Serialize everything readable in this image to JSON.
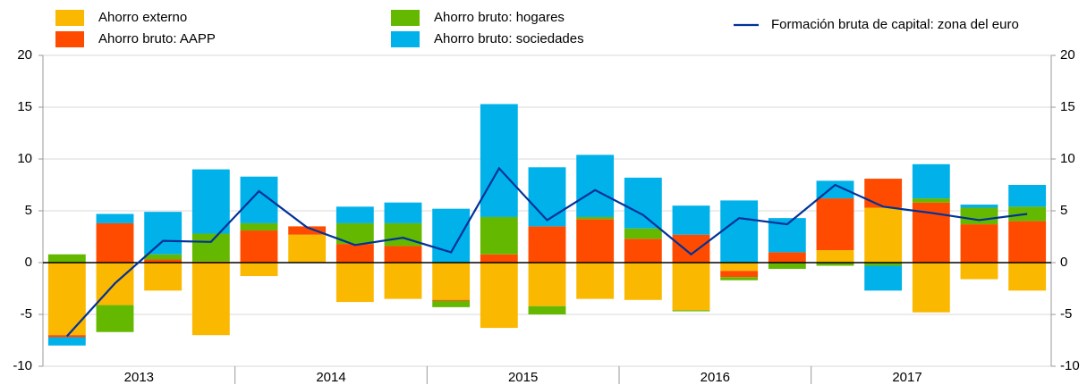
{
  "chart_data": {
    "type": "bar",
    "stacked": true,
    "categories": [
      "2013",
      null,
      null,
      null,
      "2014",
      null,
      null,
      null,
      "2015",
      null,
      null,
      null,
      "2016",
      null,
      null,
      null,
      "2017",
      null,
      null,
      null,
      null
    ],
    "series": [
      {
        "name": "Ahorro externo",
        "color": "#fbb800",
        "values": [
          -7.0,
          -4.1,
          -2.7,
          -7.0,
          -1.3,
          2.7,
          -3.8,
          -3.5,
          -3.6,
          -6.3,
          -4.2,
          -3.5,
          -3.6,
          -4.6,
          -0.8,
          0,
          1.2,
          5.3,
          -4.8,
          -1.6,
          -2.7
        ]
      },
      {
        "name": "Ahorro bruto: AAPP",
        "color": "#ff4b00",
        "values": [
          -0.2,
          3.8,
          0.3,
          0.1,
          3.1,
          0.8,
          1.8,
          1.6,
          -0.1,
          0.8,
          3.5,
          4.2,
          2.3,
          2.7,
          -0.6,
          1.0,
          5.0,
          2.8,
          5.8,
          3.7,
          4.0
        ]
      },
      {
        "name": "Ahorro bruto: hogares",
        "color": "#65b800",
        "values": [
          0.8,
          -2.6,
          0.5,
          2.7,
          0.7,
          0,
          2.0,
          2.2,
          -0.6,
          3.6,
          -0.8,
          0.2,
          1.0,
          -0.1,
          -0.3,
          -0.6,
          -0.3,
          -0.3,
          0.4,
          1.6,
          1.4
        ]
      },
      {
        "name": "Ahorro bruto: sociedades",
        "color": "#00b1ea",
        "values": [
          -0.8,
          0.9,
          4.1,
          6.2,
          4.5,
          0,
          1.6,
          2.0,
          5.2,
          10.9,
          5.7,
          6.0,
          4.9,
          2.8,
          6.0,
          3.3,
          1.7,
          -2.4,
          3.3,
          0.3,
          2.1
        ]
      },
      {
        "name": "Formación bruta de capital: zona del euro",
        "type": "line",
        "color": "#003299",
        "values": [
          -7.1,
          -2.0,
          2.1,
          2.0,
          6.9,
          3.4,
          1.7,
          2.4,
          1.0,
          9.1,
          4.1,
          7.0,
          4.6,
          0.8,
          4.3,
          3.7,
          7.5,
          5.4,
          4.8,
          4.1,
          4.7
        ]
      }
    ],
    "ylim": [
      -10,
      20
    ],
    "yticks": [
      -10,
      -5,
      0,
      5,
      10,
      15,
      20
    ],
    "grid": true
  }
}
